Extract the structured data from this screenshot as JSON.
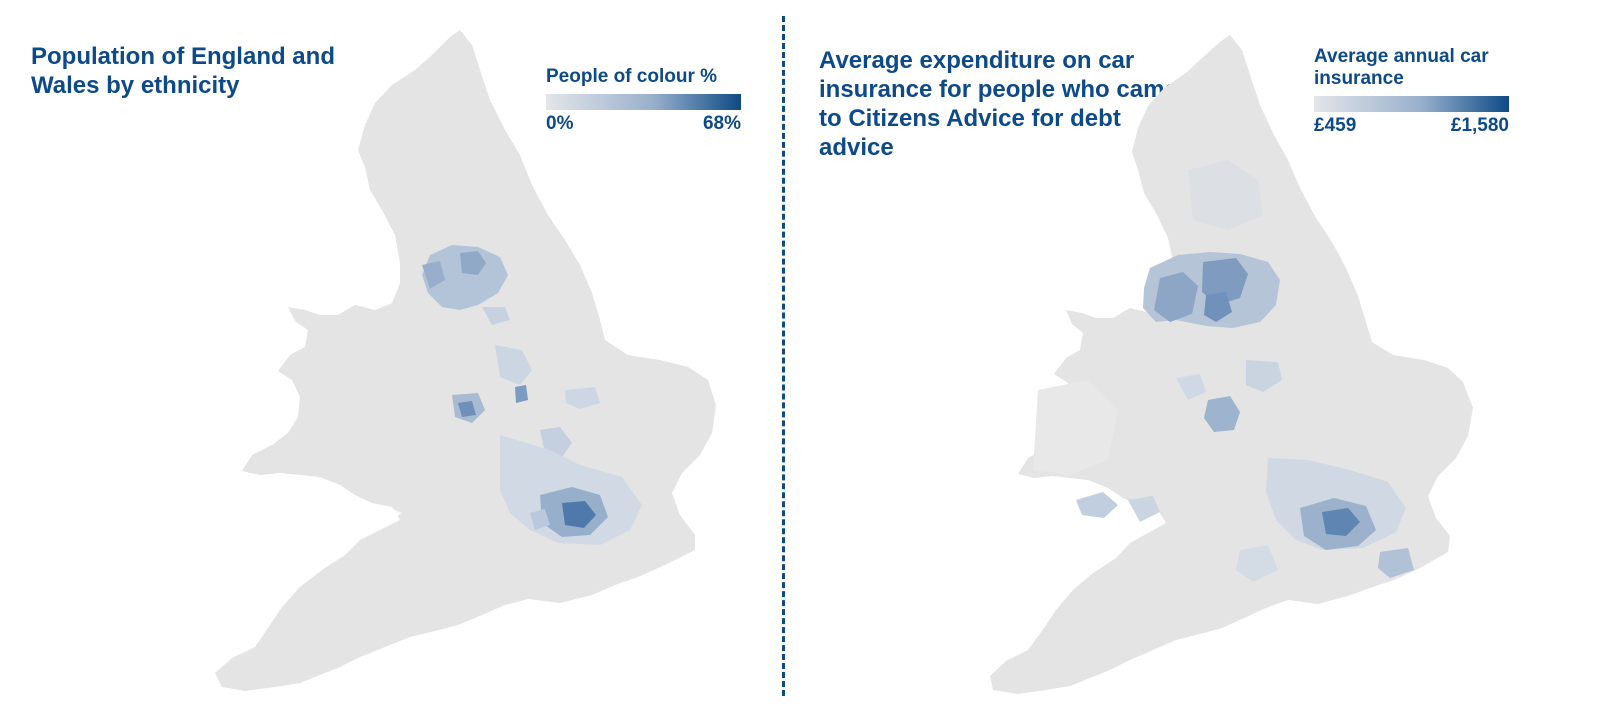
{
  "left_panel": {
    "title": "Population of England and Wales by ethnicity",
    "legend": {
      "title": "People of colour %",
      "min_label": "0%",
      "max_label": "68%"
    }
  },
  "right_panel": {
    "title": "Average expenditure on car insurance for people who came to Citizens Advice for debt advice",
    "legend": {
      "title": "Average annual car insurance",
      "min_label": "£459",
      "max_label": "£1,580"
    }
  },
  "colors": {
    "land": "#e4e4e4",
    "scale_low": "#e3e5e9",
    "scale_mid": "#98b0cc",
    "scale_high": "#0e4a86",
    "title": "#0d4a8a",
    "divider": "#0d4a8a"
  }
}
